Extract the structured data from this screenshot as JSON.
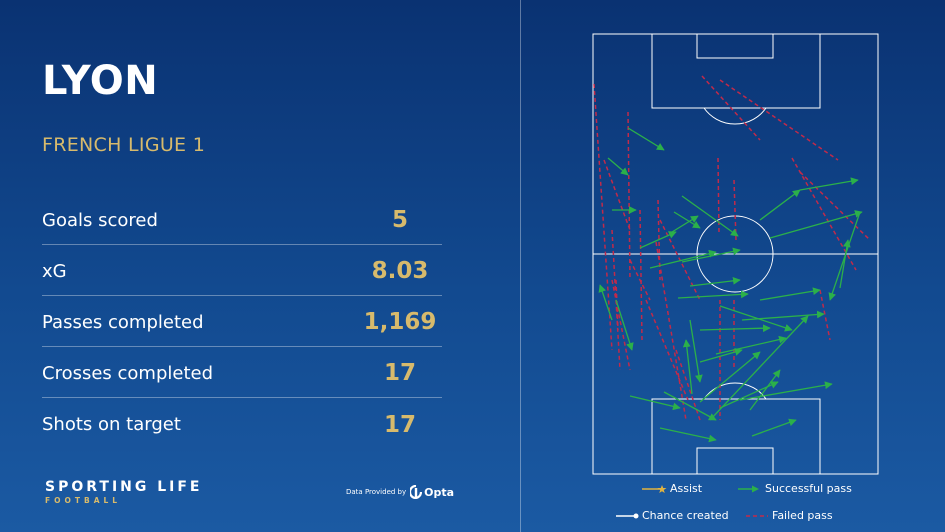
{
  "header": {
    "team": "LYON",
    "league": "FRENCH LIGUE 1"
  },
  "stats": [
    {
      "label": "Goals scored",
      "value": "5"
    },
    {
      "label": "xG",
      "value": "8.03"
    },
    {
      "label": "Passes completed",
      "value": "1,169"
    },
    {
      "label": "Crosses completed",
      "value": "17"
    },
    {
      "label": "Shots on target",
      "value": "17"
    }
  ],
  "footer": {
    "brand": "SPORTING LIFE",
    "brand_sub": "FOOTBALL",
    "provider_text": "Data Provided by",
    "provider_name": "Opta"
  },
  "legend": {
    "assist": "Assist",
    "successful": "Successful pass",
    "chance": "Chance created",
    "failed": "Failed pass"
  },
  "colors": {
    "gold": "#d7ba6c",
    "successful": "#2bb04a",
    "failed": "#c12a4a",
    "chance": "#ffffff",
    "assist": "#e0b341"
  }
}
